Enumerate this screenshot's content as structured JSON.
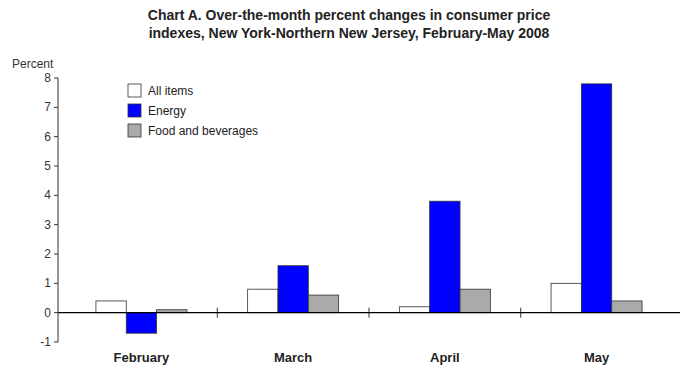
{
  "chart_data": {
    "type": "bar",
    "title": "Chart A. Over-the-month percent changes in consumer price\nindexes, New York-Northern New Jersey, February-May 2008",
    "ylabel": "Percent",
    "categories": [
      "February",
      "March",
      "April",
      "May"
    ],
    "series": [
      {
        "name": "All items",
        "color": "#ffffff",
        "values": [
          0.4,
          0.8,
          0.2,
          1.0
        ]
      },
      {
        "name": "Energy",
        "color": "#0000ff",
        "values": [
          -0.7,
          1.6,
          3.8,
          7.8
        ]
      },
      {
        "name": "Food and beverages",
        "color": "#aaaaaa",
        "values": [
          0.1,
          0.6,
          0.8,
          0.4
        ]
      }
    ],
    "ylim": [
      -1,
      8
    ],
    "yticks": [
      -1,
      0,
      1,
      2,
      3,
      4,
      5,
      6,
      7,
      8
    ],
    "grid": false,
    "legend": "upper left"
  }
}
